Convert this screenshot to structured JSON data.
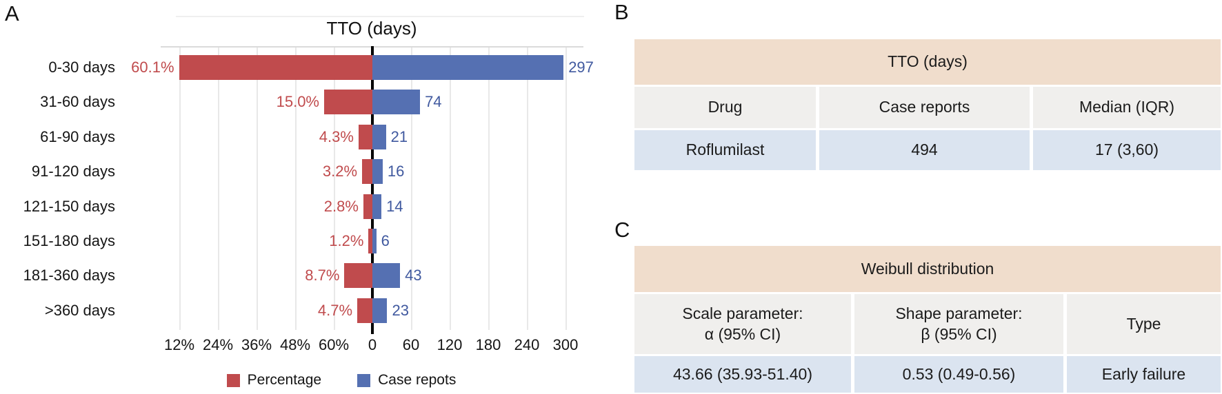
{
  "panels": {
    "a": {
      "label": "A"
    },
    "b": {
      "label": "B"
    },
    "c": {
      "label": "C"
    }
  },
  "chart_data": {
    "type": "bar",
    "variant": "horizontal-diverging",
    "title": "TTO (days)",
    "grid": true,
    "legend_position": "bottom",
    "categories": [
      "0-30 days",
      "31-60 days",
      "61-90 days",
      "91-120 days",
      "121-150 days",
      "151-180 days",
      "181-360 days",
      ">360 days"
    ],
    "series": [
      {
        "name": "Percentage",
        "side": "left",
        "color": "#c04b4d",
        "label_color": "#c04b4d",
        "values": [
          60.1,
          15.0,
          4.3,
          3.2,
          2.8,
          1.2,
          8.7,
          4.7
        ],
        "value_labels": [
          "60.1%",
          "15.0%",
          "4.3%",
          "3.2%",
          "2.8%",
          "1.2%",
          "8.7%",
          "4.7%"
        ],
        "axis_max": 60,
        "axis_tick_step": 12,
        "axis_tick_labels": [
          "60%",
          "48%",
          "36%",
          "24%",
          "12%"
        ]
      },
      {
        "name": "Case repots",
        "side": "right",
        "color": "#5570b2",
        "label_color": "#40599f",
        "values": [
          297,
          74,
          21,
          16,
          14,
          6,
          43,
          23
        ],
        "value_labels": [
          "297",
          "74",
          "21",
          "16",
          "14",
          "6",
          "43",
          "23"
        ],
        "axis_max": 300,
        "axis_tick_step": 60,
        "axis_tick_labels": [
          "60",
          "120",
          "180",
          "240",
          "300"
        ]
      }
    ],
    "zero_tick_label": "0"
  },
  "table_b": {
    "title": "TTO (days)",
    "columns": [
      "Drug",
      "Case reports",
      "Median (IQR)"
    ],
    "rows": [
      [
        "Roflumilast",
        "494",
        "17 (3,60)"
      ]
    ]
  },
  "table_c": {
    "title": "Weibull distribution",
    "columns": [
      [
        "Scale parameter:",
        "α (95% CI)"
      ],
      [
        "Shape parameter:",
        "β (95% CI)"
      ],
      [
        "Type"
      ]
    ],
    "rows": [
      [
        "43.66 (35.93-51.40)",
        "0.53 (0.49-0.56)",
        "Early failure"
      ]
    ]
  },
  "colors": {
    "bar_red": "#c04b4d",
    "bar_blue": "#5570b2",
    "value_label_red": "#c04b4d",
    "value_label_blue": "#40599f",
    "axis": "#000000",
    "gridline": "#e8e8e8",
    "table_title_bg": "#f0ddcc",
    "table_header_bg": "#f0efed",
    "table_row_bg": "#dbe4f0"
  }
}
